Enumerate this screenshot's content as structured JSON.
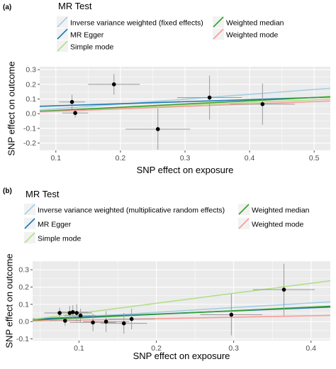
{
  "chart_data": [
    {
      "type": "scatter",
      "panel_label": "(a)",
      "legend_title": "MR Test",
      "xlabel": "SNP effect on exposure",
      "ylabel": "SNP effect on outcome",
      "xlim": [
        0.075,
        0.525
      ],
      "ylim": [
        -0.25,
        0.32
      ],
      "xticks": [
        0.1,
        0.2,
        0.3,
        0.4,
        0.5
      ],
      "xtick_labels": [
        "0.1",
        "0.2",
        "0.3",
        "0.4",
        "0.5"
      ],
      "yticks": [
        -0.2,
        -0.1,
        0.0,
        0.1,
        0.2,
        0.3
      ],
      "ytick_labels": [
        "-0.2",
        "-0.1",
        "0.0",
        "0.1",
        "0.2",
        "0.3"
      ],
      "grid": true,
      "legend_position": "top",
      "legend_items": [
        {
          "label": "Inverse variance weighted (fixed effects)",
          "color": "#a6cee3",
          "col": 0,
          "row": 0
        },
        {
          "label": "MR Egger",
          "color": "#1f78b4",
          "col": 0,
          "row": 1
        },
        {
          "label": "Simple mode",
          "color": "#b2df8a",
          "col": 0,
          "row": 2
        },
        {
          "label": "Weighted median",
          "color": "#33a02c",
          "col": 1,
          "row": 0
        },
        {
          "label": "Weighted mode",
          "color": "#fb9a99",
          "col": 1,
          "row": 1
        }
      ],
      "points": [
        {
          "x": 0.125,
          "y": 0.08,
          "xerr": 0.02,
          "yerr": 0.05
        },
        {
          "x": 0.13,
          "y": 0.005,
          "xerr": 0.02,
          "yerr": 0.03
        },
        {
          "x": 0.19,
          "y": 0.2,
          "xerr": 0.04,
          "yerr": 0.07
        },
        {
          "x": 0.258,
          "y": -0.105,
          "xerr": 0.05,
          "yerr": 0.14
        },
        {
          "x": 0.338,
          "y": 0.11,
          "xerr": 0.05,
          "yerr": 0.15
        },
        {
          "x": 0.42,
          "y": 0.065,
          "xerr": 0.05,
          "yerr": 0.14
        }
      ],
      "lines": [
        {
          "name": "Inverse variance weighted (fixed effects)",
          "color": "#a6cee3",
          "intercept": 0.0,
          "slope": 0.33
        },
        {
          "name": "MR Egger",
          "color": "#1f78b4",
          "intercept": 0.04,
          "slope": 0.14
        },
        {
          "name": "Simple mode",
          "color": "#b2df8a",
          "intercept": 0.0,
          "slope": 0.19
        },
        {
          "name": "Weighted median",
          "color": "#33a02c",
          "intercept": 0.0,
          "slope": 0.22
        },
        {
          "name": "Weighted mode",
          "color": "#fb9a99",
          "intercept": 0.0,
          "slope": 0.165
        }
      ]
    },
    {
      "type": "scatter",
      "panel_label": "(b)",
      "legend_title": "MR Test",
      "xlabel": "SNP effect on exposure",
      "ylabel": "SNP effect on outcome",
      "xlim": [
        0.04,
        0.425
      ],
      "ylim": [
        -0.11,
        0.35
      ],
      "xticks": [
        0.1,
        0.2,
        0.3,
        0.4
      ],
      "xtick_labels": [
        "0.1",
        "0.2",
        "0.3",
        "0.4"
      ],
      "yticks": [
        -0.1,
        0.0,
        0.1,
        0.2,
        0.3
      ],
      "ytick_labels": [
        "-0.1",
        "0.0",
        "0.1",
        "0.2",
        "0.3"
      ],
      "grid": true,
      "legend_position": "top",
      "legend_items": [
        {
          "label": "Inverse variance weighted (multiplicative random effects)",
          "color": "#a6cee3",
          "col": 0,
          "row": 0
        },
        {
          "label": "MR Egger",
          "color": "#1f78b4",
          "col": 0,
          "row": 1
        },
        {
          "label": "Simple mode",
          "color": "#b2df8a",
          "col": 0,
          "row": 2
        },
        {
          "label": "Weighted median",
          "color": "#33a02c",
          "col": 1,
          "row": 0
        },
        {
          "label": "Weighted mode",
          "color": "#fb9a99",
          "col": 1,
          "row": 1
        }
      ],
      "points": [
        {
          "x": 0.075,
          "y": 0.05,
          "xerr": 0.02,
          "yerr": 0.03
        },
        {
          "x": 0.082,
          "y": 0.005,
          "xerr": 0.02,
          "yerr": 0.03
        },
        {
          "x": 0.088,
          "y": 0.05,
          "xerr": 0.02,
          "yerr": 0.04
        },
        {
          "x": 0.092,
          "y": 0.055,
          "xerr": 0.02,
          "yerr": 0.04
        },
        {
          "x": 0.097,
          "y": 0.05,
          "xerr": 0.02,
          "yerr": 0.05
        },
        {
          "x": 0.102,
          "y": 0.035,
          "xerr": 0.02,
          "yerr": 0.04
        },
        {
          "x": 0.118,
          "y": -0.005,
          "xerr": 0.03,
          "yerr": 0.05
        },
        {
          "x": 0.135,
          "y": 0.0,
          "xerr": 0.03,
          "yerr": 0.06
        },
        {
          "x": 0.158,
          "y": -0.01,
          "xerr": 0.03,
          "yerr": 0.06
        },
        {
          "x": 0.168,
          "y": 0.015,
          "xerr": 0.03,
          "yerr": 0.06
        },
        {
          "x": 0.297,
          "y": 0.04,
          "xerr": 0.04,
          "yerr": 0.12
        },
        {
          "x": 0.365,
          "y": 0.185,
          "xerr": 0.04,
          "yerr": 0.15
        }
      ],
      "lines": [
        {
          "name": "Inverse variance weighted (multiplicative random effects)",
          "color": "#a6cee3",
          "intercept": 0.0,
          "slope": 0.27
        },
        {
          "name": "MR Egger",
          "color": "#1f78b4",
          "intercept": 0.008,
          "slope": 0.18
        },
        {
          "name": "Simple mode",
          "color": "#b2df8a",
          "intercept": -0.01,
          "slope": 0.58
        },
        {
          "name": "Weighted median",
          "color": "#33a02c",
          "intercept": 0.0,
          "slope": 0.21
        },
        {
          "name": "Weighted mode",
          "color": "#fb9a99",
          "intercept": 0.0,
          "slope": 0.085
        }
      ]
    }
  ]
}
